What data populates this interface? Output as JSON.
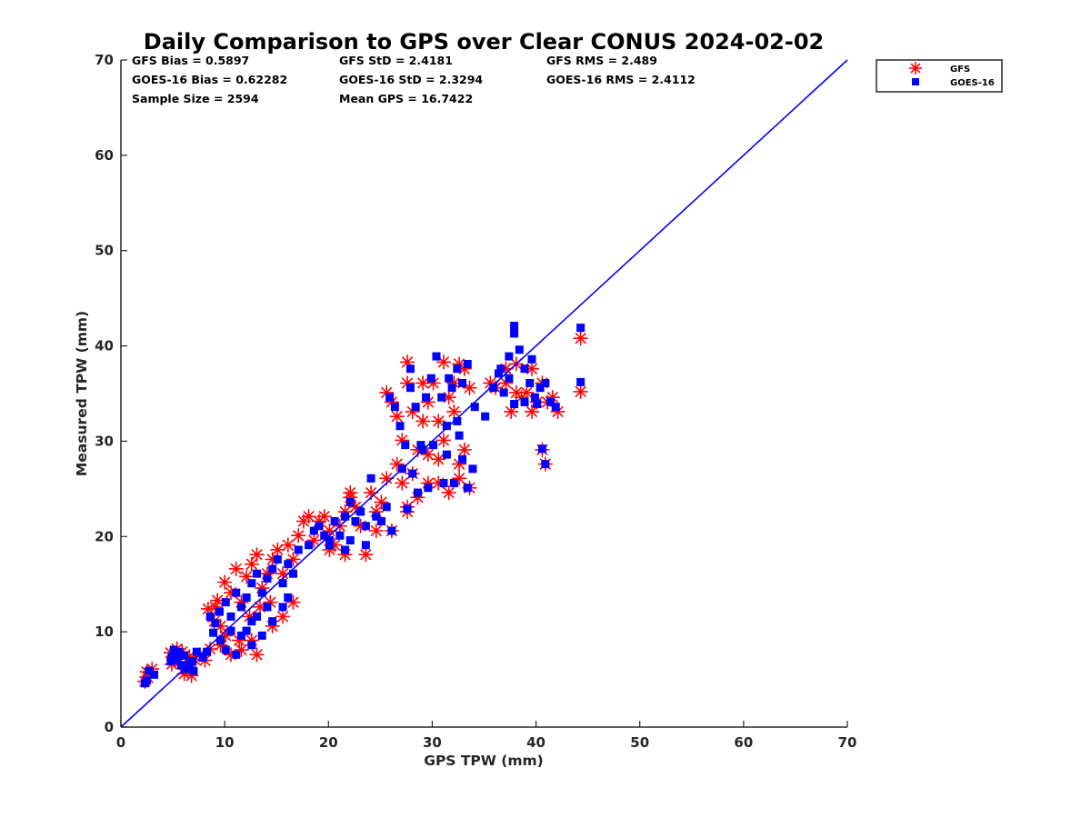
{
  "chart_data": {
    "type": "scatter",
    "title": "Daily Comparison to GPS over Clear CONUS 2024-02-02",
    "xlabel": "GPS TPW (mm)",
    "ylabel": "Measured TPW (mm)",
    "xlim": [
      0,
      70
    ],
    "ylim": [
      0,
      70
    ],
    "xticks": [
      0,
      10,
      20,
      30,
      40,
      50,
      60,
      70
    ],
    "yticks": [
      0,
      10,
      20,
      30,
      40,
      50,
      60,
      70
    ],
    "grid": false,
    "legend_position": "outside-top-right",
    "stats": [
      "GFS Bias = 0.5897",
      "GFS StD = 2.4181",
      "GFS RMS = 2.489",
      "GOES-16 Bias = 0.62282",
      "GOES-16 StD = 2.3294",
      "GOES-16 RMS = 2.4112",
      "Sample Size = 2594",
      "Mean GPS = 16.7422"
    ],
    "reference_line": {
      "name": "1:1 line",
      "x": [
        0,
        70
      ],
      "y": [
        0,
        70
      ],
      "color": "#0000ff"
    },
    "series": [
      {
        "name": "GFS",
        "marker": "asterisk",
        "color": "#ff0000",
        "points": [
          [
            2.3,
            4.8
          ],
          [
            2.5,
            5.8
          ],
          [
            3.0,
            6.1
          ],
          [
            2.6,
            5.2
          ],
          [
            4.8,
            7.8
          ],
          [
            5.2,
            7.6
          ],
          [
            5.6,
            6.8
          ],
          [
            6.1,
            5.6
          ],
          [
            6.4,
            6.2
          ],
          [
            6.8,
            5.4
          ],
          [
            7.1,
            7.1
          ],
          [
            5.4,
            8.2
          ],
          [
            6.6,
            7.4
          ],
          [
            7.6,
            7.6
          ],
          [
            8.1,
            7.0
          ],
          [
            8.6,
            8.2
          ],
          [
            4.9,
            6.6
          ],
          [
            5.9,
            7.9
          ],
          [
            8.4,
            12.4
          ],
          [
            9.0,
            11.1
          ],
          [
            9.6,
            10.6
          ],
          [
            9.3,
            13.3
          ],
          [
            10.0,
            15.2
          ],
          [
            10.6,
            14.1
          ],
          [
            11.1,
            16.6
          ],
          [
            11.6,
            13.1
          ],
          [
            12.1,
            15.8
          ],
          [
            12.6,
            17.1
          ],
          [
            13.1,
            18.1
          ],
          [
            13.6,
            14.6
          ],
          [
            14.1,
            16.1
          ],
          [
            14.6,
            17.6
          ],
          [
            15.1,
            18.6
          ],
          [
            15.6,
            16.1
          ],
          [
            16.1,
            19.1
          ],
          [
            16.6,
            17.6
          ],
          [
            17.1,
            20.1
          ],
          [
            17.6,
            21.6
          ],
          [
            12.4,
            11.6
          ],
          [
            13.4,
            12.6
          ],
          [
            14.4,
            13.1
          ],
          [
            11.4,
            9.1
          ],
          [
            9.6,
            8.6
          ],
          [
            10.6,
            7.6
          ],
          [
            11.6,
            8.1
          ],
          [
            12.6,
            9.1
          ],
          [
            13.1,
            7.6
          ],
          [
            14.6,
            10.6
          ],
          [
            15.6,
            11.6
          ],
          [
            16.6,
            13.1
          ],
          [
            9.1,
            12.6
          ],
          [
            10.1,
            9.6
          ],
          [
            18.6,
            19.6
          ],
          [
            19.1,
            21.6
          ],
          [
            19.6,
            22.1
          ],
          [
            20.1,
            20.6
          ],
          [
            20.6,
            19.1
          ],
          [
            21.1,
            21.1
          ],
          [
            21.6,
            22.6
          ],
          [
            22.1,
            24.1
          ],
          [
            22.6,
            23.1
          ],
          [
            21.6,
            18.1
          ],
          [
            20.1,
            18.6
          ],
          [
            23.6,
            18.1
          ],
          [
            24.1,
            24.6
          ],
          [
            24.6,
            22.6
          ],
          [
            25.1,
            23.6
          ],
          [
            25.6,
            26.1
          ],
          [
            26.1,
            20.6
          ],
          [
            24.6,
            20.6
          ],
          [
            23.1,
            21.1
          ],
          [
            22.1,
            24.6
          ],
          [
            18.1,
            22.1
          ],
          [
            25.6,
            35.1
          ],
          [
            26.1,
            34.1
          ],
          [
            26.6,
            32.6
          ],
          [
            27.1,
            30.1
          ],
          [
            27.6,
            36.1
          ],
          [
            27.6,
            38.3
          ],
          [
            28.1,
            33.1
          ],
          [
            28.6,
            29.1
          ],
          [
            29.1,
            36.1
          ],
          [
            29.6,
            34.1
          ],
          [
            30.1,
            36.1
          ],
          [
            30.6,
            32.1
          ],
          [
            31.1,
            30.1
          ],
          [
            31.6,
            34.6
          ],
          [
            32.1,
            36.1
          ],
          [
            32.6,
            38.1
          ],
          [
            33.1,
            37.6
          ],
          [
            33.6,
            35.6
          ],
          [
            32.1,
            33.1
          ],
          [
            33.1,
            29.1
          ],
          [
            32.6,
            26.1
          ],
          [
            33.6,
            25.1
          ],
          [
            31.6,
            24.6
          ],
          [
            30.6,
            25.6
          ],
          [
            29.6,
            25.6
          ],
          [
            28.6,
            24.1
          ],
          [
            27.6,
            23.1
          ],
          [
            27.1,
            25.6
          ],
          [
            26.6,
            27.6
          ],
          [
            28.1,
            26.6
          ],
          [
            29.6,
            28.6
          ],
          [
            30.6,
            28.1
          ],
          [
            32.6,
            27.6
          ],
          [
            27.6,
            22.6
          ],
          [
            31.1,
            38.3
          ],
          [
            29.1,
            32.1
          ],
          [
            35.6,
            36.1
          ],
          [
            36.1,
            35.6
          ],
          [
            37.1,
            36.1
          ],
          [
            37.6,
            33.1
          ],
          [
            38.1,
            35.1
          ],
          [
            38.6,
            34.6
          ],
          [
            39.1,
            35.1
          ],
          [
            39.6,
            37.6
          ],
          [
            40.1,
            34.1
          ],
          [
            40.6,
            36.1
          ],
          [
            41.1,
            34.1
          ],
          [
            41.6,
            34.6
          ],
          [
            42.1,
            33.1
          ],
          [
            40.6,
            29.1
          ],
          [
            40.9,
            27.6
          ],
          [
            44.3,
            40.8
          ],
          [
            44.3,
            35.2
          ],
          [
            38.1,
            38.1
          ],
          [
            37.1,
            37.6
          ],
          [
            39.6,
            33.1
          ]
        ]
      },
      {
        "name": "GOES-16",
        "marker": "square",
        "color": "#0000ff",
        "points": [
          [
            2.3,
            4.6
          ],
          [
            2.7,
            5.9
          ],
          [
            3.2,
            5.5
          ],
          [
            2.5,
            4.9
          ],
          [
            4.9,
            7.4
          ],
          [
            5.4,
            7.1
          ],
          [
            5.8,
            6.5
          ],
          [
            6.2,
            6.1
          ],
          [
            6.6,
            6.6
          ],
          [
            7.0,
            5.9
          ],
          [
            5.1,
            8.1
          ],
          [
            6.1,
            7.5
          ],
          [
            7.3,
            7.9
          ],
          [
            7.9,
            7.3
          ],
          [
            5.6,
            7.9
          ],
          [
            6.9,
            6.9
          ],
          [
            8.3,
            7.9
          ],
          [
            4.8,
            6.9
          ],
          [
            8.6,
            11.6
          ],
          [
            9.1,
            10.9
          ],
          [
            9.5,
            12.1
          ],
          [
            10.1,
            13.1
          ],
          [
            10.6,
            11.6
          ],
          [
            11.1,
            14.1
          ],
          [
            11.6,
            12.6
          ],
          [
            12.1,
            13.6
          ],
          [
            12.6,
            15.1
          ],
          [
            13.1,
            16.1
          ],
          [
            13.6,
            14.1
          ],
          [
            14.1,
            15.6
          ],
          [
            14.6,
            16.6
          ],
          [
            15.1,
            17.6
          ],
          [
            15.6,
            15.1
          ],
          [
            16.1,
            17.1
          ],
          [
            16.6,
            16.1
          ],
          [
            17.1,
            18.6
          ],
          [
            12.1,
            10.1
          ],
          [
            13.1,
            11.6
          ],
          [
            14.1,
            12.6
          ],
          [
            11.6,
            9.6
          ],
          [
            10.1,
            8.1
          ],
          [
            11.1,
            7.6
          ],
          [
            12.6,
            8.6
          ],
          [
            14.6,
            11.1
          ],
          [
            15.6,
            12.6
          ],
          [
            9.6,
            9.1
          ],
          [
            10.6,
            10.1
          ],
          [
            13.6,
            9.6
          ],
          [
            16.1,
            13.6
          ],
          [
            8.9,
            9.9
          ],
          [
            12.6,
            11.1
          ],
          [
            18.1,
            19.1
          ],
          [
            18.6,
            20.6
          ],
          [
            19.1,
            21.1
          ],
          [
            19.6,
            20.1
          ],
          [
            20.1,
            19.6
          ],
          [
            20.6,
            21.6
          ],
          [
            21.1,
            20.1
          ],
          [
            21.6,
            22.1
          ],
          [
            22.1,
            23.6
          ],
          [
            22.6,
            21.6
          ],
          [
            23.1,
            22.6
          ],
          [
            23.6,
            19.1
          ],
          [
            24.1,
            26.1
          ],
          [
            24.6,
            22.1
          ],
          [
            25.1,
            21.6
          ],
          [
            25.6,
            23.1
          ],
          [
            26.1,
            20.6
          ],
          [
            23.6,
            21.1
          ],
          [
            22.1,
            19.6
          ],
          [
            20.1,
            19.1
          ],
          [
            21.6,
            18.6
          ],
          [
            25.9,
            34.6
          ],
          [
            26.4,
            33.6
          ],
          [
            26.9,
            31.6
          ],
          [
            27.4,
            29.6
          ],
          [
            27.9,
            35.6
          ],
          [
            27.9,
            37.6
          ],
          [
            28.4,
            33.6
          ],
          [
            28.9,
            29.6
          ],
          [
            29.4,
            34.6
          ],
          [
            29.9,
            36.6
          ],
          [
            30.4,
            38.9
          ],
          [
            30.9,
            34.6
          ],
          [
            31.4,
            31.6
          ],
          [
            31.9,
            35.6
          ],
          [
            32.4,
            37.6
          ],
          [
            32.9,
            36.1
          ],
          [
            33.4,
            38.1
          ],
          [
            32.4,
            32.1
          ],
          [
            32.9,
            28.1
          ],
          [
            33.4,
            25.1
          ],
          [
            32.1,
            25.6
          ],
          [
            31.1,
            25.6
          ],
          [
            29.6,
            25.1
          ],
          [
            28.6,
            24.6
          ],
          [
            27.6,
            22.9
          ],
          [
            28.1,
            26.6
          ],
          [
            29.1,
            29.1
          ],
          [
            30.1,
            29.6
          ],
          [
            31.4,
            28.6
          ],
          [
            32.6,
            30.6
          ],
          [
            27.1,
            27.1
          ],
          [
            33.9,
            27.1
          ],
          [
            34.1,
            33.6
          ],
          [
            35.1,
            32.6
          ],
          [
            31.6,
            36.6
          ],
          [
            35.9,
            35.6
          ],
          [
            36.4,
            37.1
          ],
          [
            36.9,
            35.1
          ],
          [
            37.4,
            36.6
          ],
          [
            37.9,
            42.1
          ],
          [
            37.9,
            41.3
          ],
          [
            38.4,
            39.6
          ],
          [
            38.9,
            37.6
          ],
          [
            39.4,
            36.1
          ],
          [
            39.9,
            34.6
          ],
          [
            40.4,
            35.6
          ],
          [
            40.9,
            36.1
          ],
          [
            41.4,
            34.1
          ],
          [
            41.9,
            33.6
          ],
          [
            40.6,
            29.2
          ],
          [
            40.9,
            27.6
          ],
          [
            44.3,
            41.9
          ],
          [
            44.3,
            36.2
          ],
          [
            37.9,
            33.9
          ],
          [
            38.9,
            34.1
          ],
          [
            39.6,
            38.6
          ],
          [
            37.4,
            38.9
          ],
          [
            36.6,
            37.6
          ],
          [
            40.1,
            33.9
          ]
        ]
      }
    ]
  },
  "legend": {
    "items": [
      "GFS",
      "GOES-16"
    ]
  }
}
